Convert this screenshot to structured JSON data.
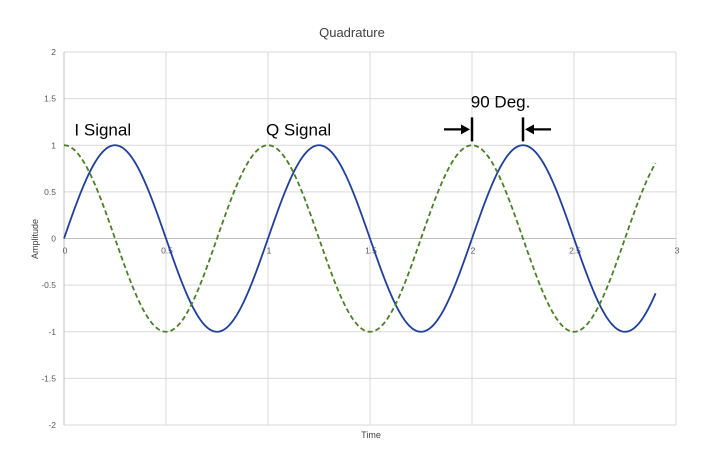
{
  "chart_data": {
    "type": "line",
    "title": "Quadrature",
    "xlabel": "Time",
    "ylabel": "Amplitude",
    "xlim": [
      0,
      3
    ],
    "ylim": [
      -2,
      2
    ],
    "x_ticks": [
      0,
      0.5,
      1,
      1.5,
      2,
      2.5,
      3
    ],
    "y_ticks": [
      -2,
      -1.5,
      -1,
      -0.5,
      0,
      0.5,
      1,
      1.5,
      2
    ],
    "grid": true,
    "legend": "none",
    "series": [
      {
        "function": "sin(2*pi*t)",
        "t_range": [
          0,
          2.9
        ],
        "color": "#1F3F9A",
        "style": "solid"
      },
      {
        "function": "cos(2*pi*t)",
        "t_range": [
          0,
          2.9
        ],
        "color": "#4B7F26",
        "style": "dashed"
      }
    ],
    "annotations": [
      {
        "text": "I Signal",
        "x": 0.19,
        "y": 1.17
      },
      {
        "text": "Q Signal",
        "x": 1.15,
        "y": 1.17
      },
      {
        "text": "90 Deg.",
        "x": 2.14,
        "y": 1.47
      }
    ],
    "phase_marker": {
      "from_x": 2.0,
      "to_x": 2.25,
      "y": 1.17
    }
  }
}
